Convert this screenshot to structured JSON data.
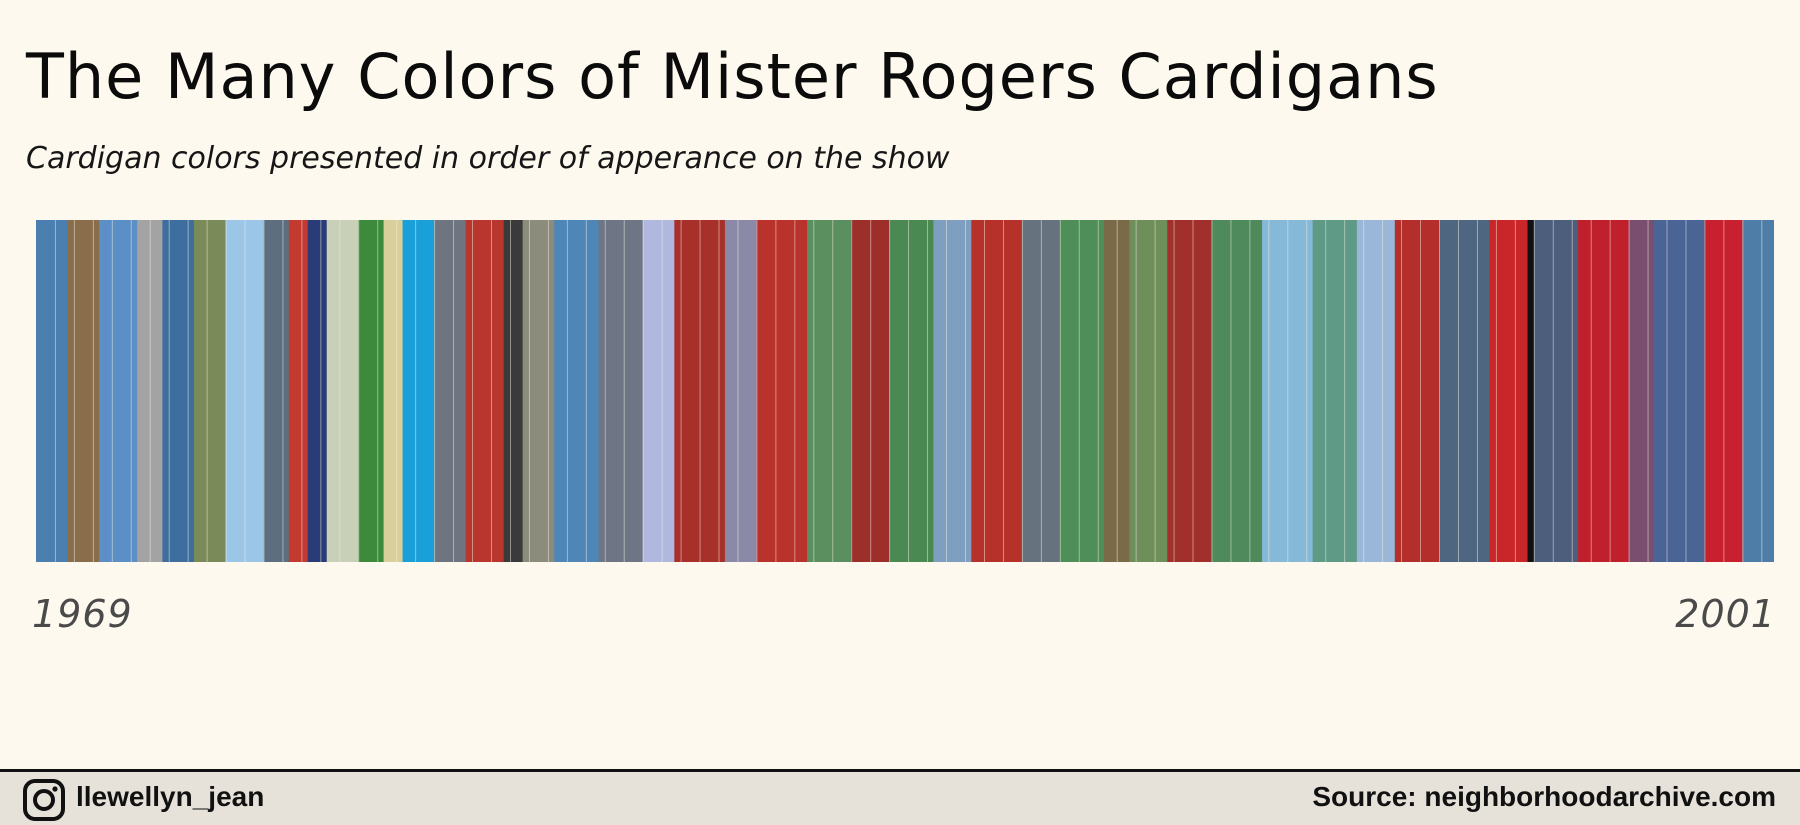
{
  "header": {
    "title": "The Many Colors of Mister Rogers Cardigans",
    "subtitle": "Cardigan colors presented in order of apperance on the show"
  },
  "footer": {
    "handle": "llewellyn_jean",
    "source": "Source: neighborhoodarchive.com",
    "icon": "instagram-icon"
  },
  "chart_data": {
    "type": "bar",
    "orientation": "vertical-stripes",
    "x_start_label": "1969",
    "x_end_label": "2001",
    "segments": [
      {
        "color": "#4a7fb0",
        "count": 5
      },
      {
        "color": "#8a6e4c",
        "count": 5
      },
      {
        "color": "#5b8fc6",
        "count": 6
      },
      {
        "color": "#a3a3a3",
        "count": 4
      },
      {
        "color": "#3e6e9e",
        "count": 5
      },
      {
        "color": "#7a8a58",
        "count": 5
      },
      {
        "color": "#9cc6e8",
        "count": 6
      },
      {
        "color": "#5d6e80",
        "count": 4
      },
      {
        "color": "#c23a30",
        "count": 3
      },
      {
        "color": "#2a3c78",
        "count": 3
      },
      {
        "color": "#c8d0b8",
        "count": 5
      },
      {
        "color": "#3d8a3c",
        "count": 4
      },
      {
        "color": "#d9cf9a",
        "count": 3
      },
      {
        "color": "#1aa0d8",
        "count": 5
      },
      {
        "color": "#6f7580",
        "count": 5
      },
      {
        "color": "#b8362e",
        "count": 6
      },
      {
        "color": "#3a3a3a",
        "count": 3
      },
      {
        "color": "#8c8c7c",
        "count": 5
      },
      {
        "color": "#4f86b8",
        "count": 7
      },
      {
        "color": "#6e7686",
        "count": 7
      },
      {
        "color": "#b0b8e0",
        "count": 5
      },
      {
        "color": "#a8302a",
        "count": 8
      },
      {
        "color": "#8a8aa8",
        "count": 5
      },
      {
        "color": "#b9322c",
        "count": 8
      },
      {
        "color": "#5b8f60",
        "count": 7
      },
      {
        "color": "#9d2f2a",
        "count": 6
      },
      {
        "color": "#4a8a52",
        "count": 7
      },
      {
        "color": "#7f9fc0",
        "count": 6
      },
      {
        "color": "#b63129",
        "count": 8
      },
      {
        "color": "#66727e",
        "count": 6
      },
      {
        "color": "#4f8e58",
        "count": 7
      },
      {
        "color": "#7a6a48",
        "count": 4
      },
      {
        "color": "#6e8e5a",
        "count": 6
      },
      {
        "color": "#a12f2b",
        "count": 7
      },
      {
        "color": "#4f8a5c",
        "count": 8
      },
      {
        "color": "#86b8d8",
        "count": 8
      },
      {
        "color": "#5e9a86",
        "count": 7
      },
      {
        "color": "#9ab6d8",
        "count": 6
      },
      {
        "color": "#b42e2c",
        "count": 7
      },
      {
        "color": "#4e6680",
        "count": 8
      },
      {
        "color": "#c9262a",
        "count": 6
      },
      {
        "color": "#111111",
        "count": 1
      },
      {
        "color": "#4c5e7c",
        "count": 7
      },
      {
        "color": "#c01f2c",
        "count": 8
      },
      {
        "color": "#7a4e6e",
        "count": 4
      },
      {
        "color": "#4a6496",
        "count": 8
      },
      {
        "color": "#c8202e",
        "count": 6
      },
      {
        "color": "#4e7ea8",
        "count": 5
      }
    ]
  }
}
